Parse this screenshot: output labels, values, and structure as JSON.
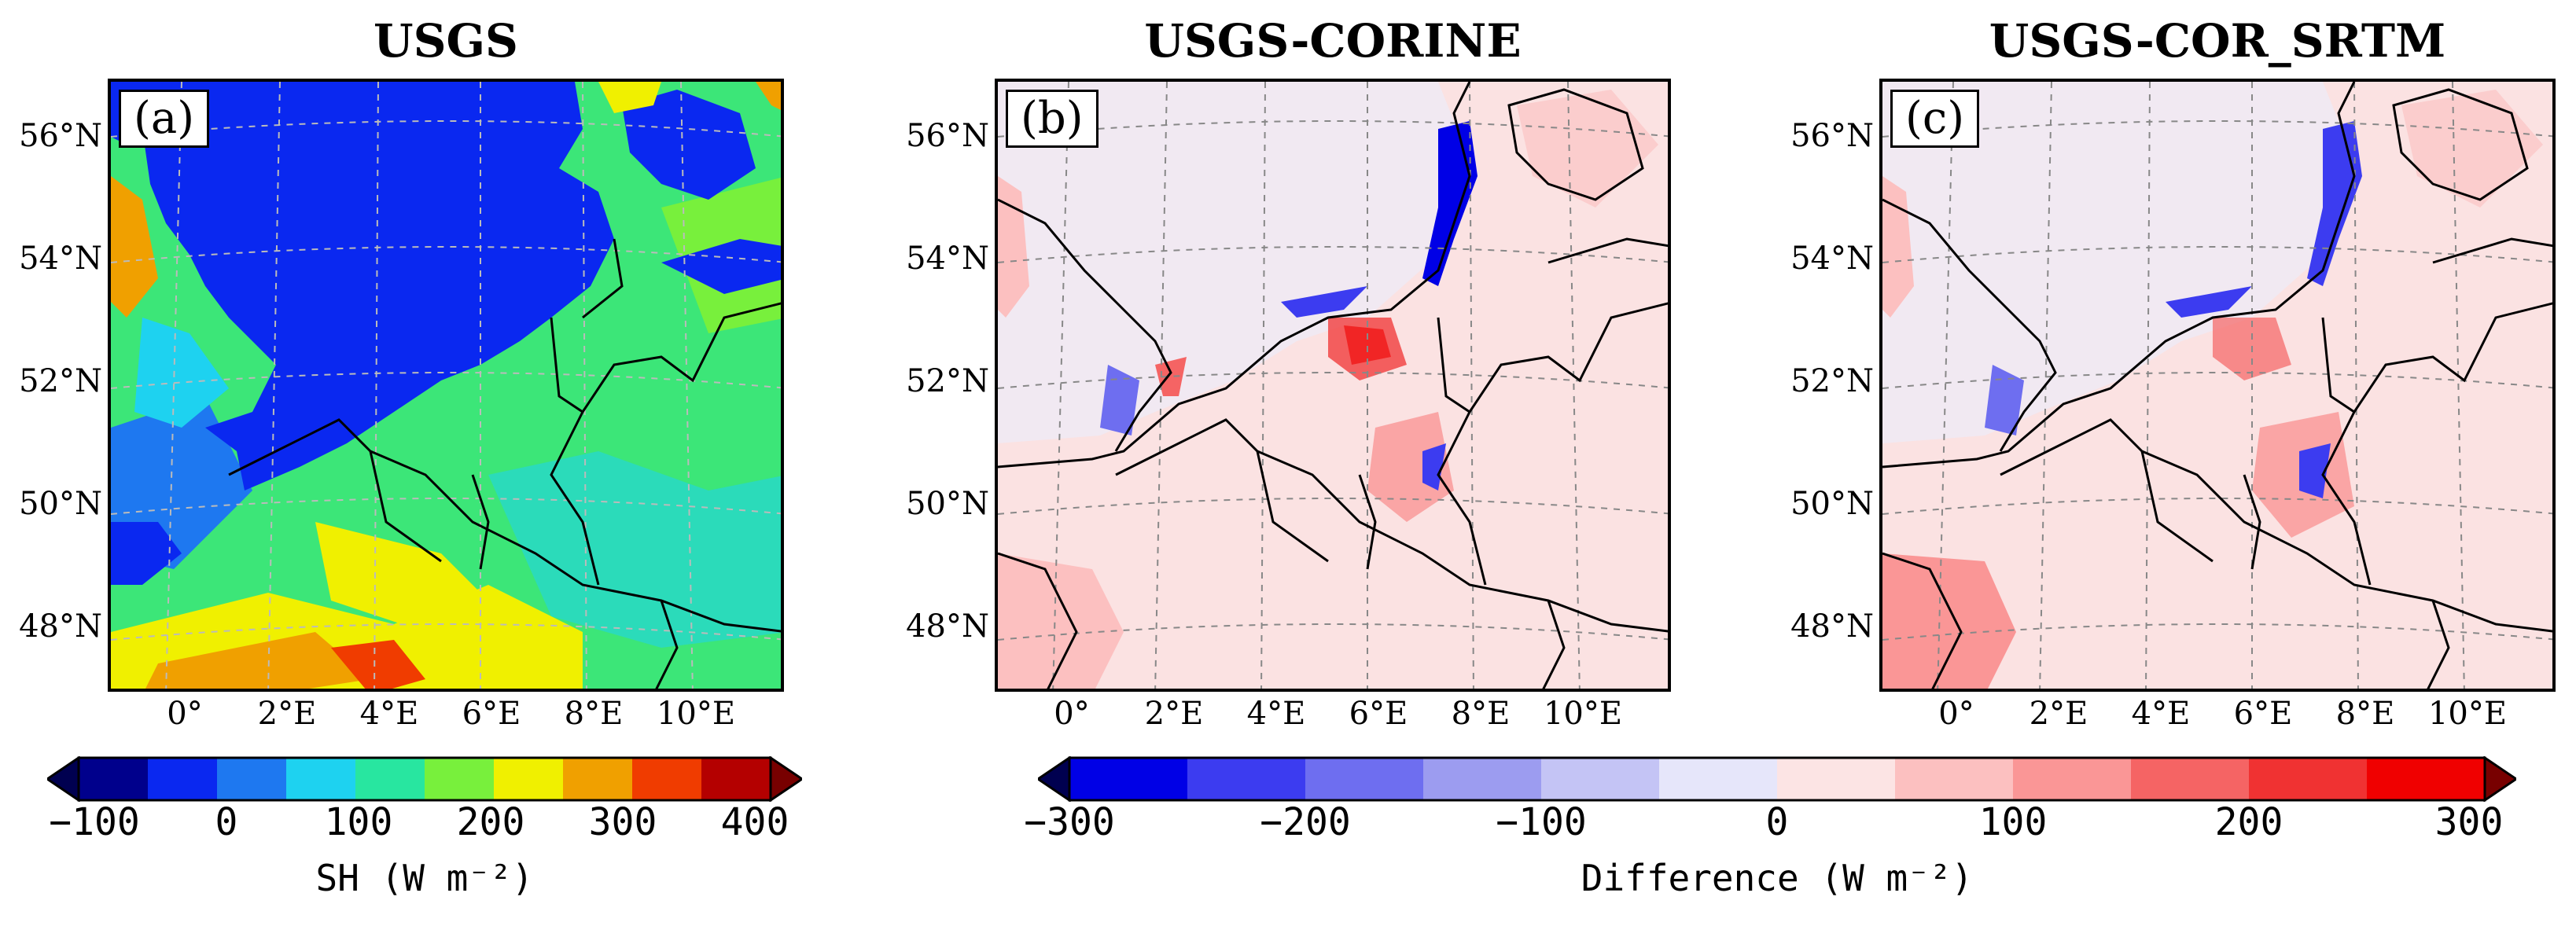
{
  "panels": [
    {
      "title": "USGS",
      "tag": "(a)"
    },
    {
      "title": "USGS-CORINE",
      "tag": "(b)"
    },
    {
      "title": "USGS-COR_SRTM",
      "tag": "(c)"
    }
  ],
  "latitude_labels": [
    "56°N",
    "54°N",
    "52°N",
    "50°N",
    "48°N"
  ],
  "longitude_labels": [
    "0°",
    "2°E",
    "4°E",
    "6°E",
    "8°E",
    "10°E"
  ],
  "colorbar_sh": {
    "ticks": [
      "−100",
      "0",
      "100",
      "200",
      "300",
      "400"
    ],
    "label": "SH (W m⁻²)",
    "colors": [
      "#00008c",
      "#0a28f0",
      "#1e78f0",
      "#1ed2f0",
      "#28e6a0",
      "#78f03c",
      "#f0f000",
      "#f0a000",
      "#f03c00",
      "#b40000"
    ]
  },
  "colorbar_diff": {
    "ticks": [
      "−300",
      "−200",
      "−100",
      "0",
      "100",
      "200",
      "300"
    ],
    "label": "Difference (W m⁻²)",
    "colors": [
      "#0000e6",
      "#3c3cf0",
      "#6e6ef0",
      "#9c9cf0",
      "#c4c4f5",
      "#e6e6fa",
      "#fce4e4",
      "#fcc0c0",
      "#fa9696",
      "#f56464",
      "#f03232",
      "#f00000"
    ]
  },
  "colors": {
    "sea": "#0a28f0",
    "land_base": "#3ce678",
    "diff_base": "#fbe2e2"
  }
}
